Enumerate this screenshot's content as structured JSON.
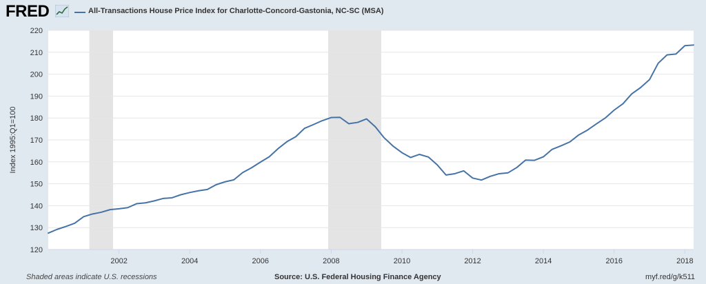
{
  "header": {
    "logo_text": "FRED",
    "logo_icon": "trend-graph-icon",
    "series_title": "All-Transactions House Price Index for Charlotte-Concord-Gastonia, NC-SC (MSA)"
  },
  "footer": {
    "note": "Shaded areas indicate U.S. recessions",
    "source": "Source: U.S. Federal Housing Finance Agency",
    "link": "myf.red/g/k511"
  },
  "colors": {
    "background": "#e1e9f0",
    "plot_background": "#ffffff",
    "line": "#4572a7",
    "recession": "#e4e4e4",
    "grid": "#e6e6e6"
  },
  "chart_data": {
    "type": "line",
    "title": "All-Transactions House Price Index for Charlotte-Concord-Gastonia, NC-SC (MSA)",
    "ylabel": "Index 1995:Q1=100",
    "xlabel": "",
    "xlim": [
      "2000-01-01",
      "2018-04-01"
    ],
    "ylim": [
      120,
      220
    ],
    "yticks": [
      120,
      130,
      140,
      150,
      160,
      170,
      180,
      190,
      200,
      210,
      220
    ],
    "xticks": [
      "2002",
      "2004",
      "2006",
      "2008",
      "2010",
      "2012",
      "2014",
      "2016",
      "2018"
    ],
    "grid": true,
    "legend": "top-left",
    "recessions": [
      {
        "start": "2001-03-01",
        "end": "2001-11-01"
      },
      {
        "start": "2007-12-01",
        "end": "2009-06-01"
      }
    ],
    "series": [
      {
        "name": "All-Transactions House Price Index for Charlotte-Concord-Gastonia, NC-SC (MSA)",
        "x": [
          "2000-01-01",
          "2000-04-01",
          "2000-07-01",
          "2000-10-01",
          "2001-01-01",
          "2001-04-01",
          "2001-07-01",
          "2001-10-01",
          "2002-01-01",
          "2002-04-01",
          "2002-07-01",
          "2002-10-01",
          "2003-01-01",
          "2003-04-01",
          "2003-07-01",
          "2003-10-01",
          "2004-01-01",
          "2004-04-01",
          "2004-07-01",
          "2004-10-01",
          "2005-01-01",
          "2005-04-01",
          "2005-07-01",
          "2005-10-01",
          "2006-01-01",
          "2006-04-01",
          "2006-07-01",
          "2006-10-01",
          "2007-01-01",
          "2007-04-01",
          "2007-07-01",
          "2007-10-01",
          "2008-01-01",
          "2008-04-01",
          "2008-07-01",
          "2008-10-01",
          "2009-01-01",
          "2009-04-01",
          "2009-07-01",
          "2009-10-01",
          "2010-01-01",
          "2010-04-01",
          "2010-07-01",
          "2010-10-01",
          "2011-01-01",
          "2011-04-01",
          "2011-07-01",
          "2011-10-01",
          "2012-01-01",
          "2012-04-01",
          "2012-07-01",
          "2012-10-01",
          "2013-01-01",
          "2013-04-01",
          "2013-07-01",
          "2013-10-01",
          "2014-01-01",
          "2014-04-01",
          "2014-07-01",
          "2014-10-01",
          "2015-01-01",
          "2015-04-01",
          "2015-07-01",
          "2015-10-01",
          "2016-01-01",
          "2016-04-01",
          "2016-07-01",
          "2016-10-01",
          "2017-01-01",
          "2017-04-01",
          "2017-07-01",
          "2017-10-01",
          "2018-01-01",
          "2018-04-01"
        ],
        "values": [
          127.5,
          129.2,
          130.5,
          132.0,
          135.0,
          136.2,
          137.0,
          138.2,
          138.6,
          139.1,
          140.9,
          141.3,
          142.2,
          143.3,
          143.6,
          145.0,
          146.0,
          146.8,
          147.4,
          149.6,
          150.9,
          151.8,
          155.1,
          157.3,
          159.9,
          162.3,
          166.0,
          169.2,
          171.5,
          175.3,
          177.0,
          178.8,
          180.2,
          180.3,
          177.4,
          178.0,
          179.6,
          176.0,
          171.0,
          167.2,
          164.2,
          162.0,
          163.4,
          162.2,
          158.6,
          154.0,
          154.6,
          155.9,
          152.6,
          151.7,
          153.4,
          154.6,
          155.0,
          157.4,
          160.8,
          160.7,
          162.3,
          165.7,
          167.3,
          169.1,
          172.3,
          174.5,
          177.3,
          180.0,
          183.6,
          186.5,
          191.0,
          193.9,
          197.5,
          205.0,
          208.8,
          209.2,
          213.0,
          213.3
        ]
      }
    ]
  }
}
